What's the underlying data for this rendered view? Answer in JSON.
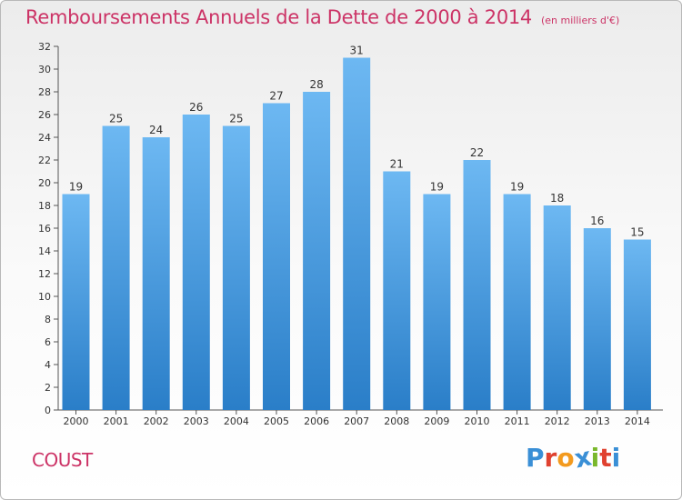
{
  "header": {
    "title": "Remboursements Annuels de la Dette de 2000 à 2014",
    "unit": "(en milliers d'€)"
  },
  "footer": {
    "town": "COUST",
    "brand": "Proxiti"
  },
  "colors": {
    "title": "#cc3366",
    "bar_top": "#6db8f2",
    "bar_bottom": "#2a7ec8",
    "brand_letters": [
      "#3a8fd6",
      "#e0412f",
      "#f39a1e",
      "#3a8fd6",
      "#7ab82b",
      "#e0412f",
      "#3a8fd6"
    ]
  },
  "chart_data": {
    "type": "bar",
    "title": "Remboursements Annuels de la Dette de 2000 à 2014",
    "unit": "(en milliers d'€)",
    "categories": [
      "2000",
      "2001",
      "2002",
      "2003",
      "2004",
      "2005",
      "2006",
      "2007",
      "2008",
      "2009",
      "2010",
      "2011",
      "2012",
      "2013",
      "2014"
    ],
    "values": [
      19,
      25,
      24,
      26,
      25,
      27,
      28,
      31,
      21,
      19,
      22,
      19,
      18,
      16,
      15
    ],
    "ylim": [
      0,
      32
    ],
    "yticks": [
      0,
      2,
      4,
      6,
      8,
      10,
      12,
      14,
      16,
      18,
      20,
      22,
      24,
      26,
      28,
      30,
      32
    ],
    "grid": false,
    "legend": "none"
  }
}
